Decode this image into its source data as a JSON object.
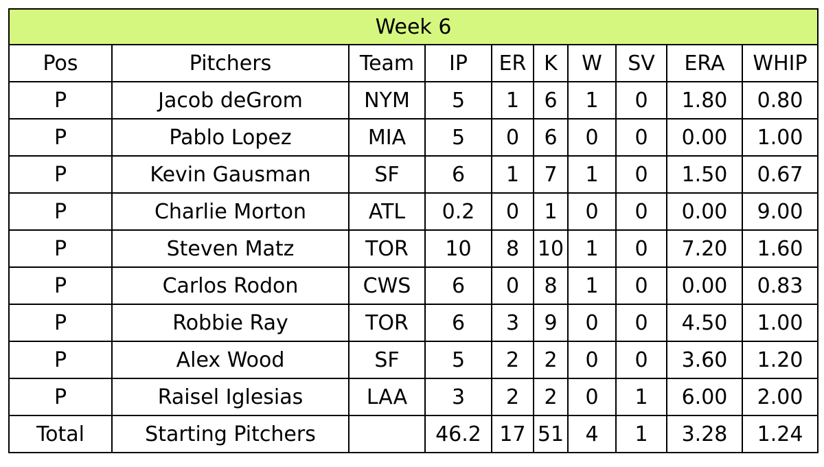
{
  "table": {
    "title": "Week 6",
    "title_bg": "#d6f77f",
    "columns": [
      "Pos",
      "Pitchers",
      "Team",
      "IP",
      "ER",
      "K",
      "W",
      "SV",
      "ERA",
      "WHIP"
    ],
    "rows": [
      [
        "P",
        "Jacob deGrom",
        "NYM",
        "5",
        "1",
        "6",
        "1",
        "0",
        "1.80",
        "0.80"
      ],
      [
        "P",
        "Pablo Lopez",
        "MIA",
        "5",
        "0",
        "6",
        "0",
        "0",
        "0.00",
        "1.00"
      ],
      [
        "P",
        "Kevin Gausman",
        "SF",
        "6",
        "1",
        "7",
        "1",
        "0",
        "1.50",
        "0.67"
      ],
      [
        "P",
        "Charlie Morton",
        "ATL",
        "0.2",
        "0",
        "1",
        "0",
        "0",
        "0.00",
        "9.00"
      ],
      [
        "P",
        "Steven Matz",
        "TOR",
        "10",
        "8",
        "10",
        "1",
        "0",
        "7.20",
        "1.60"
      ],
      [
        "P",
        "Carlos Rodon",
        "CWS",
        "6",
        "0",
        "8",
        "1",
        "0",
        "0.00",
        "0.83"
      ],
      [
        "P",
        "Robbie Ray",
        "TOR",
        "6",
        "3",
        "9",
        "0",
        "0",
        "4.50",
        "1.00"
      ],
      [
        "P",
        "Alex Wood",
        "SF",
        "5",
        "2",
        "2",
        "0",
        "0",
        "3.60",
        "1.20"
      ],
      [
        "P",
        "Raisel Iglesias",
        "LAA",
        "3",
        "2",
        "2",
        "0",
        "1",
        "6.00",
        "2.00"
      ]
    ],
    "total": [
      "Total",
      "Starting Pitchers",
      "",
      "46.2",
      "17",
      "51",
      "4",
      "1",
      "3.28",
      "1.24"
    ]
  }
}
